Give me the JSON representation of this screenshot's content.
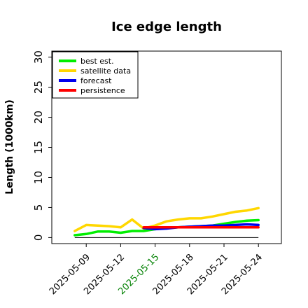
{
  "chart_data": {
    "type": "line",
    "title": "Ice edge length",
    "xlabel": "",
    "ylabel": "Length (1000km)",
    "ylim": [
      -1,
      31
    ],
    "yticks": [
      0,
      5,
      10,
      15,
      20,
      25,
      30
    ],
    "xticks": [
      {
        "label": "2025-05-09",
        "color": "#000000"
      },
      {
        "label": "2025-05-12",
        "color": "#000000"
      },
      {
        "label": "2025-05-15",
        "color": "#008000"
      },
      {
        "label": "2025-05-18",
        "color": "#000000"
      },
      {
        "label": "2025-05-21",
        "color": "#000000"
      },
      {
        "label": "2025-05-24",
        "color": "#000000"
      }
    ],
    "xlim": [
      "2025-05-06",
      "2025-05-26"
    ],
    "reference_line": {
      "y": 0,
      "color": "#000000"
    },
    "legend_placement": "top-left",
    "grid": false,
    "series": [
      {
        "name": "best est.",
        "color": "#00ee00",
        "x": [
          "2025-05-08",
          "2025-05-09",
          "2025-05-10",
          "2025-05-11",
          "2025-05-12",
          "2025-05-13",
          "2025-05-14",
          "2025-05-15",
          "2025-05-16",
          "2025-05-17",
          "2025-05-18",
          "2025-05-19",
          "2025-05-20",
          "2025-05-21",
          "2025-05-22",
          "2025-05-23",
          "2025-05-24"
        ],
        "y": [
          0.4,
          0.6,
          1.0,
          1.0,
          0.8,
          1.1,
          1.1,
          1.4,
          1.6,
          1.7,
          1.8,
          1.9,
          2.0,
          2.3,
          2.6,
          2.8,
          2.9
        ]
      },
      {
        "name": "satellite data",
        "color": "#ffd700",
        "x": [
          "2025-05-08",
          "2025-05-09",
          "2025-05-10",
          "2025-05-11",
          "2025-05-12",
          "2025-05-13",
          "2025-05-14",
          "2025-05-15",
          "2025-05-16",
          "2025-05-17",
          "2025-05-18",
          "2025-05-19",
          "2025-05-20",
          "2025-05-21",
          "2025-05-22",
          "2025-05-23",
          "2025-05-24"
        ],
        "y": [
          1.1,
          2.1,
          2.0,
          1.9,
          1.7,
          3.0,
          1.5,
          2.0,
          2.7,
          3.0,
          3.2,
          3.2,
          3.5,
          3.9,
          4.3,
          4.5,
          4.9
        ]
      },
      {
        "name": "forecast",
        "color": "#0000ee",
        "x": [
          "2025-05-14",
          "2025-05-15",
          "2025-05-16",
          "2025-05-17",
          "2025-05-18",
          "2025-05-19",
          "2025-05-20",
          "2025-05-21",
          "2025-05-22",
          "2025-05-23",
          "2025-05-24"
        ],
        "y": [
          1.6,
          1.4,
          1.5,
          1.7,
          1.8,
          1.9,
          2.0,
          2.0,
          2.1,
          2.2,
          2.1
        ]
      },
      {
        "name": "persistence",
        "color": "#ff0000",
        "x": [
          "2025-05-14",
          "2025-05-15",
          "2025-05-16",
          "2025-05-17",
          "2025-05-18",
          "2025-05-19",
          "2025-05-20",
          "2025-05-21",
          "2025-05-22",
          "2025-05-23",
          "2025-05-24"
        ],
        "y": [
          1.7,
          1.7,
          1.7,
          1.7,
          1.7,
          1.7,
          1.7,
          1.7,
          1.7,
          1.7,
          1.7
        ]
      }
    ]
  }
}
